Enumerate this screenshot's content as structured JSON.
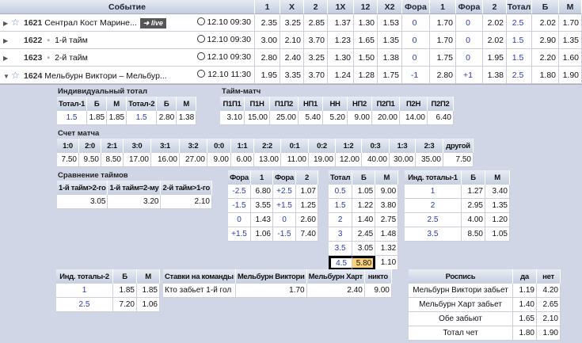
{
  "main": {
    "headers": [
      "Событие",
      "1",
      "X",
      "2",
      "1X",
      "12",
      "X2",
      "Фора",
      "1",
      "Фора",
      "2",
      "Тотал",
      "Б",
      "М"
    ],
    "rows": [
      {
        "expanded": false,
        "star": true,
        "id": "1621",
        "name": "Сентрал Кост Марине...",
        "live": "live",
        "time": "12.10 09:30",
        "odds": [
          "2.35",
          "3.25",
          "2.85",
          "1.37",
          "1.30",
          "1.53",
          "0",
          "1.70",
          "0",
          "2.02",
          "2.5",
          "2.02",
          "1.70"
        ]
      },
      {
        "expanded": false,
        "star": false,
        "id": "1622",
        "name": "1-й тайм",
        "time": "12.10 09:30",
        "odds": [
          "3.00",
          "2.10",
          "3.70",
          "1.23",
          "1.65",
          "1.35",
          "0",
          "1.70",
          "0",
          "2.02",
          "1.5",
          "2.90",
          "1.35"
        ]
      },
      {
        "expanded": false,
        "star": false,
        "id": "1623",
        "name": "2-й тайм",
        "time": "12.10 09:30",
        "odds": [
          "2.80",
          "2.40",
          "3.25",
          "1.30",
          "1.50",
          "1.38",
          "0",
          "1.75",
          "0",
          "1.95",
          "1.5",
          "2.20",
          "1.60"
        ]
      },
      {
        "expanded": true,
        "star": true,
        "id": "1624",
        "name": "Мельбурн Виктори – Мельбур...",
        "time": "12.10 11:30",
        "odds": [
          "1.95",
          "3.35",
          "3.70",
          "1.24",
          "1.28",
          "1.75",
          "-1",
          "2.80",
          "+1",
          "1.38",
          "2.5",
          "1.80",
          "1.90"
        ]
      }
    ]
  },
  "colors": {
    "blue": "#2a3ab0",
    "highlight": "#fbd27a",
    "detail_bg": "#d0d6e6"
  },
  "tables": [
    {
      "key": "ind-total",
      "title": "Индивидуальный тотал",
      "headers": [
        "Тотал-1",
        "Б",
        "М",
        "Тотал-2",
        "Б",
        "М"
      ],
      "blue": [
        0,
        3
      ],
      "rows": [
        [
          "1.5",
          "1.85",
          "1.85",
          "1.5",
          "2.80",
          "1.38"
        ]
      ]
    },
    {
      "key": "taim-match",
      "title": "Тайм-матч",
      "headers": [
        "П1П1",
        "П1Н",
        "П1П2",
        "НП1",
        "НН",
        "НП2",
        "П2П1",
        "П2Н",
        "П2П2"
      ],
      "blue": [],
      "rows": [
        [
          "3.10",
          "15.00",
          "25.00",
          "5.40",
          "5.20",
          "9.00",
          "20.00",
          "14.00",
          "6.40"
        ]
      ]
    },
    {
      "key": "score",
      "title": "Счет матча",
      "headers": [
        "1:0",
        "2:0",
        "2:1",
        "3:0",
        "3:1",
        "3:2",
        "0:0",
        "1:1",
        "2:2",
        "0:1",
        "0:2",
        "1:2",
        "0:3",
        "1:3",
        "2:3",
        "другой"
      ],
      "blue": [],
      "rows": [
        [
          "7.50",
          "9.50",
          "8.50",
          "17.00",
          "16.00",
          "27.00",
          "9.00",
          "6.00",
          "13.00",
          "11.00",
          "19.00",
          "12.00",
          "40.00",
          "30.00",
          "35.00",
          "7.50"
        ]
      ]
    },
    {
      "key": "halves",
      "title": "Сравнение таймов",
      "headers": [
        "1-й тайм>2-го",
        "1-й тайм=2-му",
        "2-й тайм>1-го"
      ],
      "blue": [],
      "rows": [
        [
          "3.05",
          "3.20",
          "2.10"
        ]
      ]
    },
    {
      "key": "handicap",
      "title": "",
      "headers": [
        "Фора",
        "1",
        "Фора",
        "2"
      ],
      "blue": [
        0,
        2
      ],
      "rows": [
        [
          "-2.5",
          "6.80",
          "+2.5",
          "1.07"
        ],
        [
          "-1.5",
          "3.55",
          "+1.5",
          "1.25"
        ],
        [
          "0",
          "1.43",
          "0",
          "2.60"
        ],
        [
          "+1.5",
          "1.06",
          "-1.5",
          "7.40"
        ]
      ]
    },
    {
      "key": "total",
      "title": "",
      "headers": [
        "Тотал",
        "Б",
        "М"
      ],
      "blue": [
        0
      ],
      "rows": [
        [
          "0.5",
          "1.05",
          "9.00"
        ],
        [
          "1.5",
          "1.22",
          "3.80"
        ],
        [
          "2",
          "1.40",
          "2.75"
        ],
        [
          "3",
          "2.45",
          "1.48"
        ],
        [
          "3.5",
          "3.05",
          "1.32"
        ],
        [
          "4.5",
          "5.80",
          "1.10"
        ]
      ],
      "selected": {
        "row": 5,
        "col": 1
      }
    },
    {
      "key": "ind-totals-1",
      "title": "",
      "headers": [
        "Инд. тоталы-1",
        "Б",
        "М"
      ],
      "blue": [
        0
      ],
      "rows": [
        [
          "1",
          "1.27",
          "3.40"
        ],
        [
          "2",
          "2.95",
          "1.35"
        ],
        [
          "2.5",
          "4.00",
          "1.20"
        ],
        [
          "3.5",
          "8.50",
          "1.05"
        ]
      ]
    },
    {
      "key": "ind-totals-2",
      "title": "",
      "headers": [
        "Инд. тоталы-2",
        "Б",
        "М"
      ],
      "blue": [
        0
      ],
      "rows": [
        [
          "1",
          "1.85",
          "1.85"
        ],
        [
          "2.5",
          "7.20",
          "1.06"
        ]
      ]
    },
    {
      "key": "team-bets",
      "title": "",
      "headers": [
        "Ставки на команды",
        "Мельбурн Виктори",
        "Мельбурн Харт",
        "никто"
      ],
      "blue": [],
      "rows": [
        [
          "Кто забьет 1-й гол",
          "1.70",
          "2.40",
          "9.00"
        ]
      ]
    },
    {
      "key": "rospis",
      "title": "",
      "headers": [
        "Роспись",
        "да",
        "нет"
      ],
      "blue": [],
      "rows": [
        [
          "Мельбурн Виктори забьет",
          "1.19",
          "4.20"
        ],
        [
          "Мельбурн Харт забьет",
          "1.40",
          "2.65"
        ],
        [
          "Обе забьют",
          "1.65",
          "2.10"
        ],
        [
          "Тотал чет",
          "1.80",
          "1.90"
        ]
      ]
    }
  ]
}
